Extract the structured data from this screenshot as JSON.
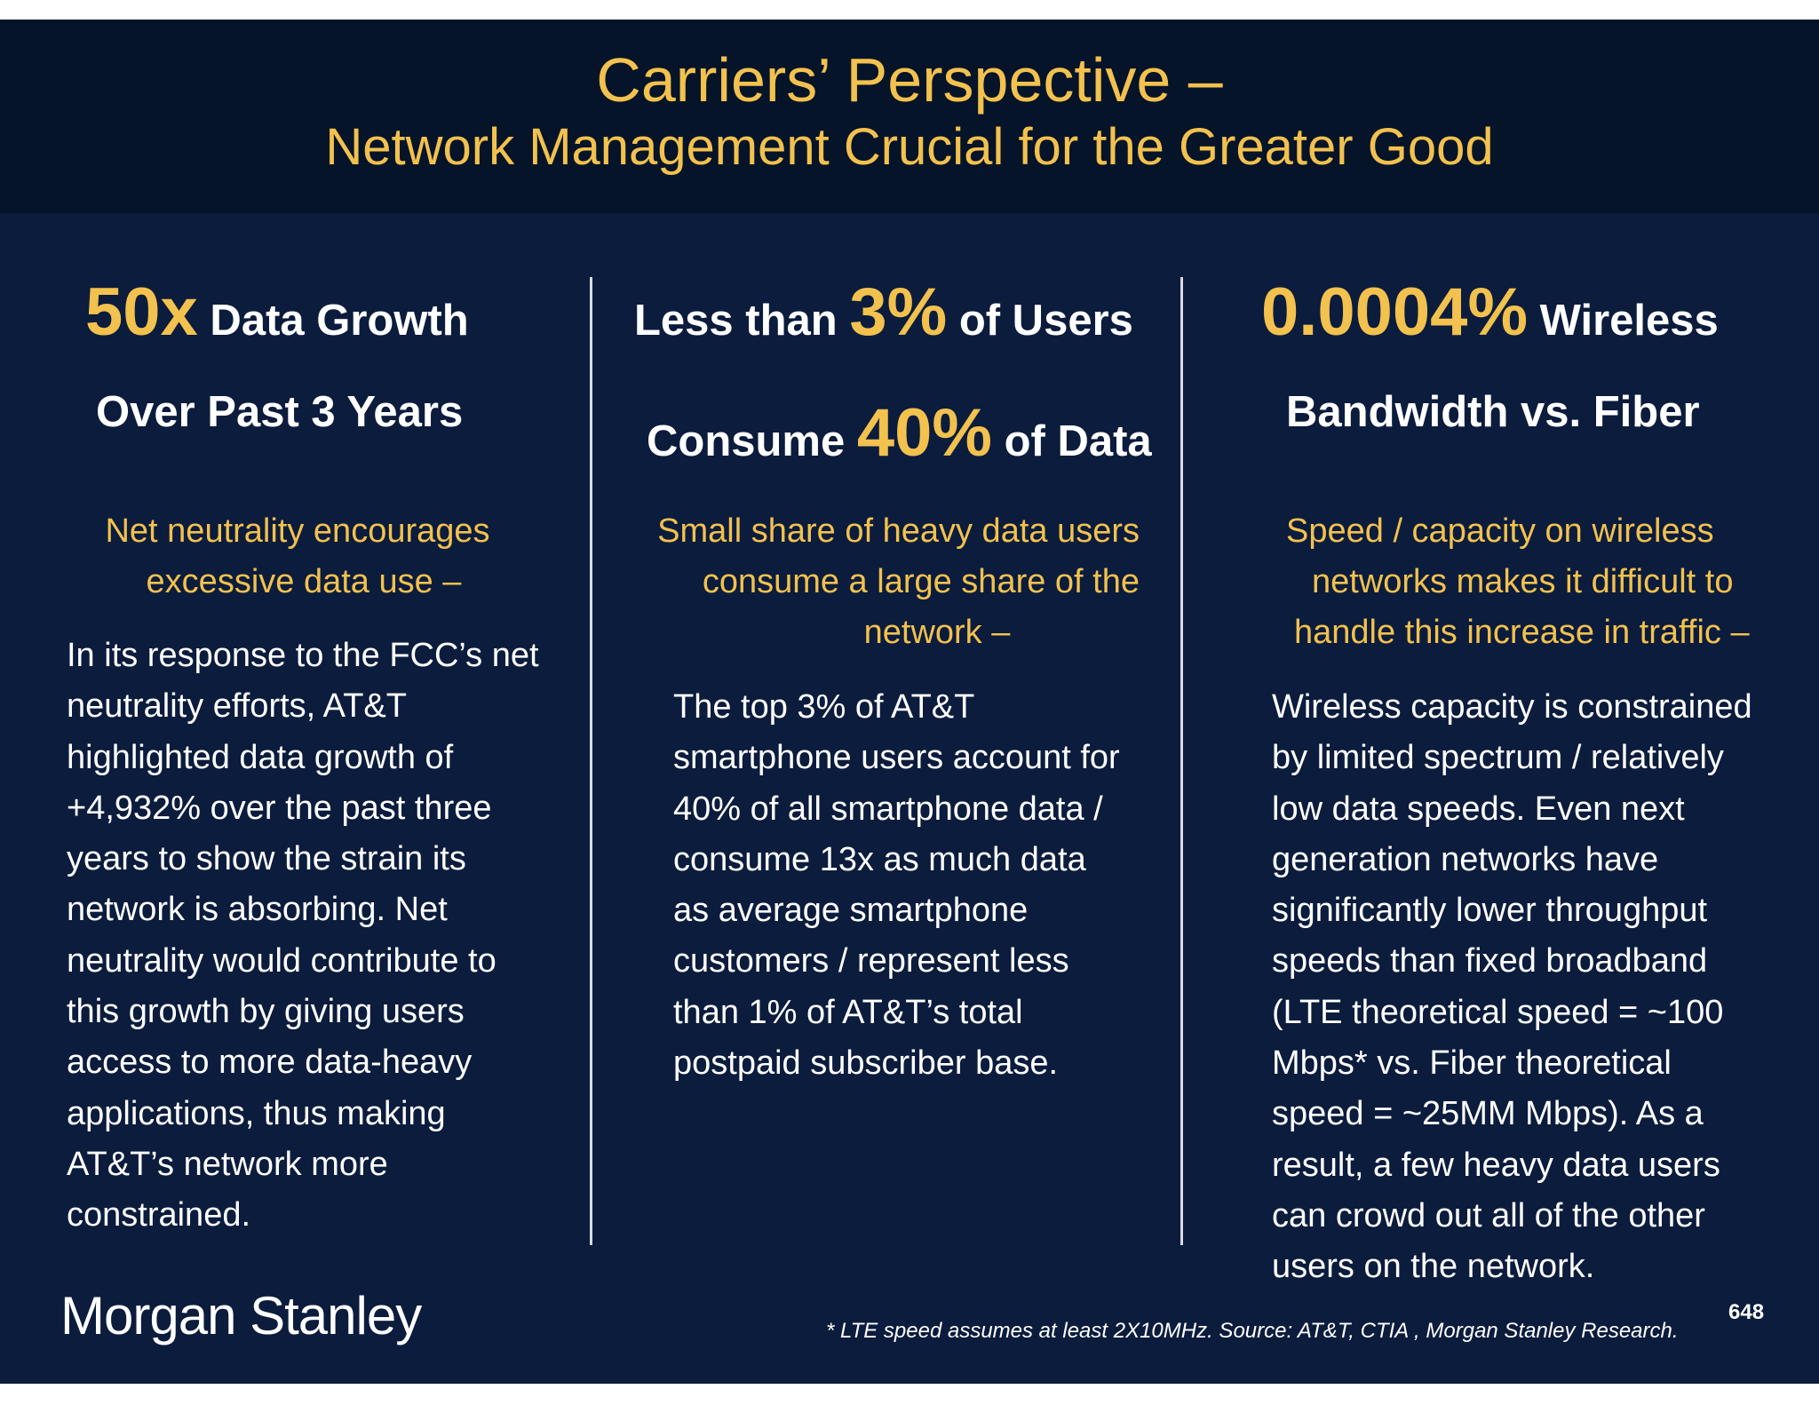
{
  "title": {
    "line1": "Carriers’ Perspective –",
    "line2": "Network Management Crucial for the Greater Good"
  },
  "columns": [
    {
      "head1_big": "50x",
      "head1_rest": " Data Growth",
      "head2": "Over Past 3 Years",
      "subtitle_lines": [
        "Net neutrality encourages",
        "excessive data use –"
      ],
      "body_lines": [
        "In its response to the FCC’s net",
        "neutrality efforts, AT&T",
        "highlighted data growth of",
        "+4,932% over the past three",
        "years to show the strain its",
        "network is absorbing. Net",
        "neutrality would contribute to",
        "this growth by giving users",
        "access to more data-heavy",
        "applications, thus making",
        "AT&T’s network more",
        "constrained."
      ]
    },
    {
      "head1_pre": "Less than ",
      "head1_big": "3%",
      "head1_rest": " of Users",
      "head2_pre": "Consume ",
      "head2_big": "40%",
      "head2_rest": " of Data",
      "subtitle_lines": [
        "Small share of heavy data users",
        "consume a large share of the",
        "network –"
      ],
      "body_lines": [
        "The top 3% of AT&T",
        "smartphone users account for",
        "40% of all smartphone data /",
        "consume 13x as much data",
        "as average smartphone",
        "customers / represent less",
        "than 1% of AT&T’s total",
        "postpaid subscriber base."
      ]
    },
    {
      "head1_big": "0.0004%",
      "head1_rest": " Wireless",
      "head2": "Bandwidth vs. Fiber",
      "subtitle_lines": [
        "Speed / capacity on wireless",
        "networks makes it difficult to",
        "handle this increase in traffic –"
      ],
      "body_lines": [
        "Wireless capacity is constrained",
        "by limited spectrum / relatively",
        "low data speeds. Even next",
        "generation networks have",
        "significantly lower throughput",
        "speeds than fixed broadband",
        "(LTE theoretical speed = ~100",
        "Mbps* vs. Fiber theoretical",
        "speed = ~25MM Mbps). As a",
        "result, a few heavy data users",
        "can crowd out all of the other",
        "users on the network."
      ]
    }
  ],
  "footer": {
    "logo": "Morgan Stanley",
    "footnote": "* LTE speed assumes at least 2X10MHz. Source: AT&T, CTIA , Morgan Stanley Research.",
    "page_number": "648"
  },
  "colors": {
    "background": "#0b1c3d",
    "title_band": "#061429",
    "accent": "#f2c14e",
    "text": "#ffffff"
  }
}
